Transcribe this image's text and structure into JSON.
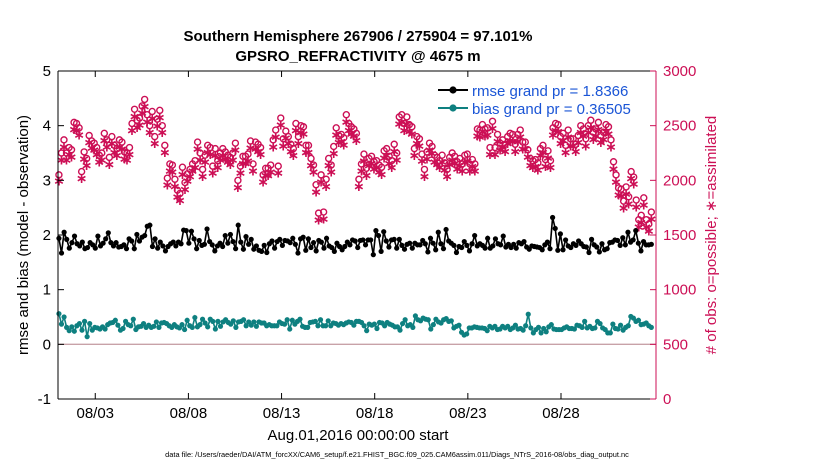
{
  "title_line1": "Southern Hemisphere 267906 / 275904 = 97.101%",
  "title_line2": "GPSRO_REFRACTIVITY @ 4675 m",
  "footer": "data file: /Users/raeder/DAI/ATM_forcXX/CAM6_setup/f.e21.FHIST_BGC.f09_025.CAM6assim.011/Diags_NTrS_2016-08/obs_diag_output.nc",
  "colors": {
    "rmse": "#000000",
    "bias": "#0e8080",
    "obs": "#cc0f55",
    "zero_line": "#c8a2a8",
    "legend_text": "#1a55d6"
  },
  "chart_data": {
    "type": "line",
    "title": "Southern Hemisphere 267906 / 275904 = 97.101%\nGPSRO_REFRACTIVITY @ 4675 m",
    "xlabel": "Aug.01,2016 00:00:00 start",
    "ylabel": "rmse and bias (model - observation)",
    "ylabel_right": "# of obs: o=possible; ∗=assimilated",
    "x_ticks": [
      "08/03",
      "08/08",
      "08/13",
      "08/18",
      "08/23",
      "08/28"
    ],
    "x_tick_days": [
      3,
      8,
      13,
      18,
      23,
      28
    ],
    "xlim_days": [
      1,
      33.1
    ],
    "y_ticks": [
      "-1",
      "0",
      "1",
      "2",
      "3",
      "4",
      "5"
    ],
    "ylim": [
      -1,
      5
    ],
    "y2_ticks": [
      "0",
      "500",
      "1000",
      "1500",
      "2000",
      "2500",
      "3000"
    ],
    "y2lim": [
      0,
      3000
    ],
    "grid": false,
    "legend_position": "top-right",
    "series": [
      {
        "name": "rmse grand pr = 1.8366",
        "axis": "left",
        "values": [
          1.94,
          1.67,
          2.05,
          1.92,
          1.76,
          1.86,
          1.98,
          1.84,
          1.8,
          1.87,
          1.75,
          1.77,
          1.86,
          1.82,
          1.76,
          1.98,
          1.8,
          1.85,
          1.93,
          2.04,
          1.86,
          1.8,
          1.86,
          1.78,
          1.79,
          1.82,
          1.75,
          1.93,
          1.89,
          1.75,
          2.01,
          1.89,
          1.96,
          1.99,
          2.16,
          2.18,
          1.79,
          1.93,
          1.76,
          1.87,
          1.8,
          1.71,
          1.79,
          1.84,
          1.87,
          1.8,
          1.87,
          1.84,
          2.09,
          2.08,
          1.85,
          2.07,
          1.93,
          1.75,
          1.9,
          1.81,
          1.83,
          2.11,
          1.88,
          1.82,
          1.71,
          1.8,
          1.85,
          1.79,
          1.99,
          1.85,
          2.01,
          1.88,
          1.75,
          2.18,
          1.87,
          1.74,
          1.97,
          1.83,
          1.92,
          1.74,
          1.8,
          1.72,
          1.7,
          1.81,
          1.68,
          1.84,
          1.89,
          1.76,
          1.88,
          1.92,
          1.81,
          1.9,
          1.89,
          1.86,
          1.94,
          1.83,
          1.67,
          1.93,
          1.96,
          1.72,
          1.93,
          1.77,
          1.86,
          1.71,
          1.9,
          1.87,
          1.76,
          1.94,
          1.8,
          1.77,
          1.7,
          1.85,
          1.79,
          1.73,
          1.79,
          1.87,
          1.82,
          1.91,
          1.89,
          1.77,
          1.9,
          1.91,
          1.82,
          1.91,
          1.91,
          1.64,
          2.08,
          1.99,
          1.7,
          2.06,
          1.89,
          1.78,
          1.91,
          1.92,
          1.76,
          1.92,
          1.81,
          1.74,
          1.83,
          1.85,
          1.76,
          1.85,
          1.82,
          1.82,
          1.9,
          1.84,
          1.69,
          1.94,
          1.85,
          1.73,
          2.05,
          1.84,
          1.75,
          2.1,
          1.89,
          1.85,
          1.81,
          1.68,
          1.79,
          1.77,
          1.88,
          1.81,
          1.71,
          1.84,
          1.99,
          1.8,
          1.84,
          1.81,
          1.76,
          1.94,
          1.76,
          1.8,
          1.93,
          1.84,
          1.82,
          1.98,
          1.78,
          1.83,
          1.77,
          1.83,
          1.76,
          1.86,
          1.84,
          1.88,
          1.78,
          1.74,
          1.8,
          1.79,
          1.78,
          1.77,
          1.73,
          1.82,
          1.87,
          1.75,
          2.32,
          2.12,
          1.72,
          2.02,
          1.73,
          1.91,
          1.8,
          1.77,
          1.84,
          1.81,
          1.89,
          1.84,
          1.79,
          1.78,
          1.68,
          1.92,
          1.82,
          1.78,
          1.69,
          1.84,
          1.73,
          1.75,
          1.86,
          1.87,
          1.91,
          1.9,
          1.81,
          1.95,
          1.82,
          2.05,
          1.87,
          1.91,
          2.08,
          1.85,
          1.71,
          1.88,
          1.82,
          1.82,
          1.83
        ]
      },
      {
        "name": "bias grand pr = 0.36505",
        "axis": "left",
        "values": [
          0.56,
          0.37,
          0.5,
          0.31,
          0.25,
          0.32,
          0.24,
          0.34,
          0.38,
          0.26,
          0.42,
          0.14,
          0.38,
          0.26,
          0.31,
          0.3,
          0.28,
          0.32,
          0.28,
          0.36,
          0.39,
          0.4,
          0.44,
          0.35,
          0.26,
          0.29,
          0.42,
          0.36,
          0.34,
          0.46,
          0.27,
          0.32,
          0.33,
          0.38,
          0.31,
          0.35,
          0.31,
          0.33,
          0.41,
          0.31,
          0.39,
          0.4,
          0.38,
          0.34,
          0.31,
          0.36,
          0.32,
          0.3,
          0.36,
          0.27,
          0.44,
          0.34,
          0.31,
          0.49,
          0.32,
          0.36,
          0.46,
          0.39,
          0.32,
          0.46,
          0.42,
          0.28,
          0.42,
          0.33,
          0.41,
          0.45,
          0.4,
          0.37,
          0.43,
          0.31,
          0.41,
          0.42,
          0.45,
          0.34,
          0.41,
          0.35,
          0.41,
          0.33,
          0.41,
          0.39,
          0.39,
          0.34,
          0.36,
          0.34,
          0.34,
          0.34,
          0.41,
          0.38,
          0.37,
          0.45,
          0.28,
          0.44,
          0.37,
          0.42,
          0.46,
          0.33,
          0.31,
          0.31,
          0.4,
          0.41,
          0.42,
          0.34,
          0.45,
          0.34,
          0.34,
          0.43,
          0.34,
          0.39,
          0.38,
          0.35,
          0.38,
          0.36,
          0.39,
          0.41,
          0.4,
          0.35,
          0.42,
          0.42,
          0.4,
          0.34,
          0.25,
          0.37,
          0.35,
          0.37,
          0.29,
          0.4,
          0.39,
          0.34,
          0.4,
          0.37,
          0.35,
          0.32,
          0.32,
          0.26,
          0.38,
          0.45,
          0.34,
          0.36,
          0.31,
          0.52,
          0.45,
          0.43,
          0.48,
          0.46,
          0.45,
          0.28,
          0.36,
          0.46,
          0.41,
          0.39,
          0.45,
          0.47,
          0.42,
          0.43,
          0.3,
          0.33,
          0.35,
          0.22,
          0.17,
          0.19,
          0.3,
          0.3,
          0.32,
          0.31,
          0.3,
          0.3,
          0.29,
          0.25,
          0.33,
          0.3,
          0.33,
          0.27,
          0.28,
          0.33,
          0.3,
          0.33,
          0.27,
          0.3,
          0.35,
          0.28,
          0.29,
          0.26,
          0.34,
          0.55,
          0.3,
          0.21,
          0.27,
          0.31,
          0.21,
          0.29,
          0.23,
          0.32,
          0.36,
          0.28,
          0.27,
          0.27,
          0.27,
          0.3,
          0.32,
          0.29,
          0.29,
          0.28,
          0.35,
          0.34,
          0.31,
          0.42,
          0.3,
          0.33,
          0.29,
          0.3,
          0.42,
          0.38,
          0.3,
          0.27,
          0.21,
          0.21,
          0.37,
          0.29,
          0.28,
          0.35,
          0.26,
          0.31,
          0.34,
          0.51,
          0.48,
          0.42,
          0.44,
          0.36,
          0.37,
          0.39,
          0.34,
          0.31
        ]
      },
      {
        "name": "# of obs possible",
        "axis": "right",
        "marker": "o",
        "values": [
          2050,
          2250,
          2370,
          2250,
          2300,
          2280,
          2530,
          2520,
          2480,
          2080,
          2260,
          2200,
          2410,
          2360,
          2340,
          2300,
          2230,
          2250,
          2430,
          2370,
          2210,
          2400,
          2320,
          2290,
          2370,
          2350,
          2260,
          2250,
          2300,
          2520,
          2650,
          2550,
          2570,
          2680,
          2740,
          2600,
          2500,
          2630,
          2400,
          2560,
          2640,
          2500,
          2320,
          2020,
          2150,
          2140,
          2010,
          1910,
          1880,
          2120,
          1980,
          2060,
          2100,
          2150,
          2180,
          2350,
          2250,
          2100,
          2230,
          2320,
          2300,
          2130,
          2290,
          2180,
          2250,
          2290,
          2260,
          2230,
          2210,
          2250,
          2340,
          2000,
          2130,
          2220,
          2220,
          2240,
          2360,
          2150,
          2350,
          2330,
          2300,
          2050,
          2110,
          2110,
          2140,
          2370,
          2460,
          2130,
          2570,
          2380,
          2450,
          2400,
          2330,
          2290,
          2520,
          2400,
          2500,
          2490,
          2320,
          2320,
          2200,
          2140,
          1960,
          1700,
          2050,
          1710,
          2010,
          2200,
          2140,
          2310,
          2480,
          2410,
          2420,
          2390,
          2600,
          2520,
          2490,
          2470,
          2430,
          2010,
          2150,
          2240,
          2110,
          2200,
          2220,
          2170,
          2180,
          2140,
          2120,
          2270,
          2290,
          2220,
          2180,
          2330,
          2250,
          2580,
          2600,
          2520,
          2580,
          2510,
          2490,
          2290,
          2400,
          2380,
          2240,
          2100,
          2260,
          2340,
          2310,
          2230,
          2210,
          2180,
          2230,
          2160,
          2100,
          2210,
          2250,
          2220,
          2170,
          2200,
          2150,
          2230,
          2240,
          2150,
          2190,
          2150,
          2470,
          2460,
          2510,
          2470,
          2480,
          2300,
          2540,
          2300,
          2420,
          2340,
          2370,
          2330,
          2400,
          2430,
          2420,
          2330,
          2420,
          2460,
          2350,
          2350,
          2280,
          2200,
          2180,
          2190,
          2160,
          2290,
          2320,
          2190,
          2270,
          2180,
          2480,
          2520,
          2510,
          2400,
          2430,
          2320,
          2460,
          2380,
          2380,
          2330,
          2410,
          2500,
          2470,
          2380,
          2500,
          2550,
          2440,
          2470,
          2530,
          2410,
          2440,
          2510,
          2490,
          2370,
          2170,
          2050,
          1930,
          1920,
          1810,
          1940,
          1850,
          2080,
          2030,
          1820,
          1640,
          1680,
          1840,
          1640,
          1600,
          1710
        ]
      },
      {
        "name": "# of obs assimilated",
        "axis": "right",
        "marker": "*",
        "values": [
          2000,
          2190,
          2310,
          2190,
          2240,
          2220,
          2470,
          2460,
          2420,
          2020,
          2200,
          2140,
          2350,
          2300,
          2280,
          2240,
          2170,
          2190,
          2370,
          2310,
          2150,
          2340,
          2260,
          2230,
          2310,
          2290,
          2200,
          2190,
          2240,
          2460,
          2590,
          2490,
          2510,
          2620,
          2680,
          2540,
          2440,
          2570,
          2340,
          2500,
          2580,
          2440,
          2260,
          1960,
          2090,
          2080,
          1950,
          1850,
          1820,
          2060,
          1920,
          2000,
          2040,
          2090,
          2120,
          2290,
          2190,
          2040,
          2170,
          2260,
          2240,
          2070,
          2230,
          2120,
          2190,
          2230,
          2200,
          2170,
          2150,
          2190,
          2280,
          1940,
          2070,
          2160,
          2160,
          2180,
          2300,
          2090,
          2290,
          2270,
          2240,
          1990,
          2050,
          2050,
          2080,
          2310,
          2400,
          2070,
          2510,
          2320,
          2390,
          2340,
          2270,
          2230,
          2460,
          2340,
          2440,
          2430,
          2260,
          2260,
          2140,
          2080,
          1900,
          1640,
          1990,
          1650,
          1950,
          2140,
          2080,
          2250,
          2420,
          2350,
          2360,
          2330,
          2540,
          2460,
          2430,
          2410,
          2370,
          1950,
          2090,
          2180,
          2050,
          2140,
          2160,
          2110,
          2120,
          2080,
          2060,
          2210,
          2230,
          2160,
          2120,
          2270,
          2190,
          2520,
          2540,
          2460,
          2520,
          2450,
          2430,
          2230,
          2340,
          2320,
          2180,
          2040,
          2200,
          2280,
          2250,
          2170,
          2150,
          2120,
          2170,
          2100,
          2040,
          2150,
          2190,
          2160,
          2110,
          2140,
          2090,
          2170,
          2180,
          2090,
          2130,
          2090,
          2410,
          2400,
          2450,
          2410,
          2420,
          2240,
          2480,
          2240,
          2360,
          2280,
          2310,
          2270,
          2340,
          2370,
          2360,
          2270,
          2360,
          2400,
          2290,
          2290,
          2220,
          2140,
          2120,
          2130,
          2100,
          2230,
          2260,
          2130,
          2210,
          2120,
          2420,
          2460,
          2450,
          2340,
          2370,
          2260,
          2400,
          2320,
          2320,
          2270,
          2350,
          2440,
          2410,
          2320,
          2440,
          2490,
          2380,
          2410,
          2470,
          2350,
          2380,
          2450,
          2430,
          2310,
          2110,
          1990,
          1870,
          1860,
          1750,
          1880,
          1790,
          2020,
          1970,
          1760,
          1580,
          1620,
          1780,
          1580,
          1540,
          1650
        ]
      }
    ]
  }
}
